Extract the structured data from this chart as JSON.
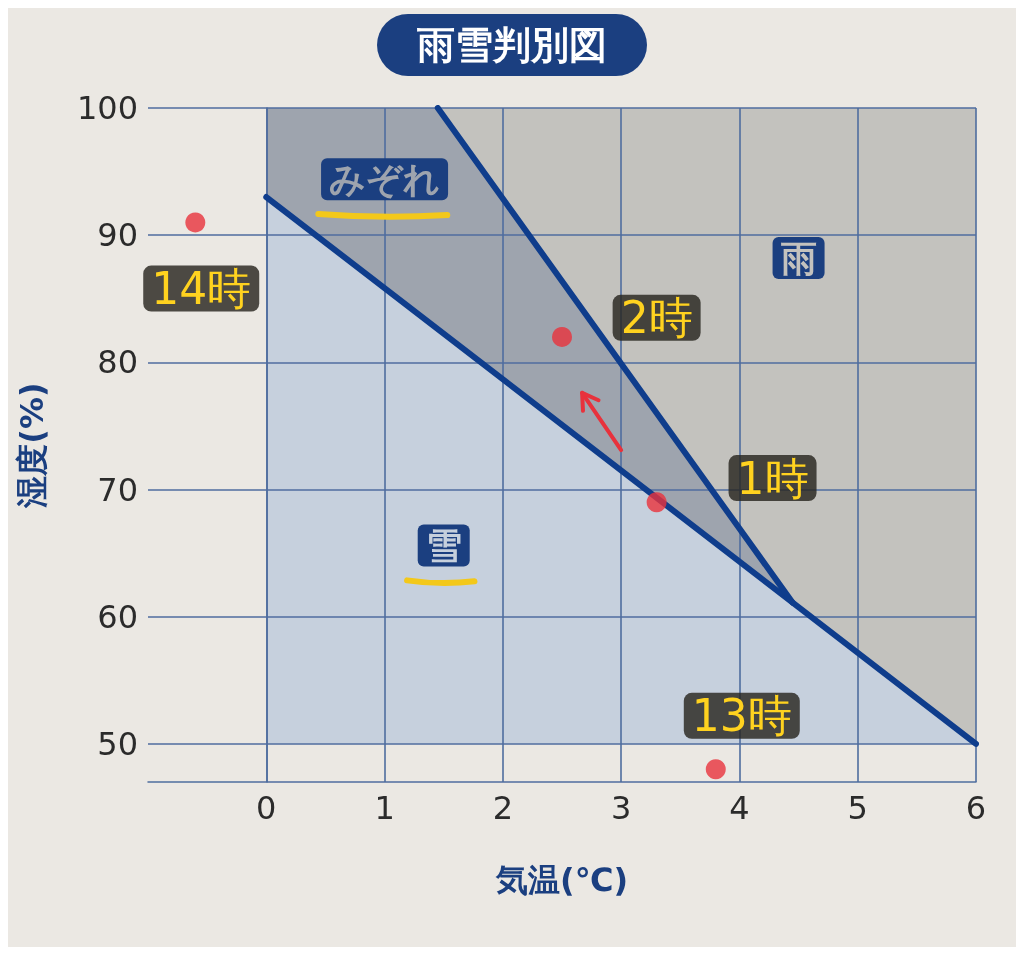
{
  "chart_data": {
    "type": "line",
    "title": "雨雪判別図",
    "xlabel": "気温(℃)",
    "ylabel": "湿度(%)",
    "xlim": [
      -1,
      6
    ],
    "ylim": [
      47,
      100
    ],
    "xticks": [
      0,
      1,
      2,
      3,
      4,
      5,
      6
    ],
    "yticks": [
      50,
      60,
      70,
      80,
      90,
      100
    ],
    "grid": true,
    "series": [
      {
        "type": "area",
        "name": "雪",
        "color": "#c6d0dd",
        "x": [
          0,
          6
        ],
        "values": [
          null,
          null
        ],
        "lower": [
          50,
          50
        ],
        "upper": [
          93,
          50
        ]
      },
      {
        "type": "area",
        "name": "みぞれ",
        "color": "#9ea4ae",
        "x": [
          0,
          1.45,
          4.45
        ],
        "values": [
          null,
          null,
          null
        ],
        "lower": [
          93,
          82.6,
          61.1
        ],
        "upper": [
          100,
          100,
          61.1
        ]
      },
      {
        "type": "area",
        "name": "雨",
        "color": "#c3c2be",
        "x": [
          1.45,
          4.45,
          6
        ],
        "values": [
          null,
          null,
          null
        ],
        "lower": [
          100,
          61.1,
          50
        ],
        "upper": [
          100,
          100,
          100
        ]
      },
      {
        "color": "#0f3d8c",
        "x": [
          0,
          6
        ],
        "values": [
          93,
          50
        ]
      },
      {
        "color": "#0f3d8c",
        "x": [
          1.45,
          4.45
        ],
        "values": [
          100,
          61.1
        ]
      },
      {
        "type": "scatter",
        "color": "#e8323c",
        "marker": "circle",
        "x": [
          -0.6,
          2.5,
          3.3,
          3.8
        ],
        "values": [
          91,
          82,
          69,
          48
        ]
      }
    ],
    "annotations": [
      {
        "text": "14時",
        "x": -0.6,
        "y": 91
      },
      {
        "text": "2時",
        "x": 2.5,
        "y": 82
      },
      {
        "text": "1時",
        "x": 3.3,
        "y": 69
      },
      {
        "text": "13時",
        "x": 3.8,
        "y": 48
      }
    ]
  }
}
